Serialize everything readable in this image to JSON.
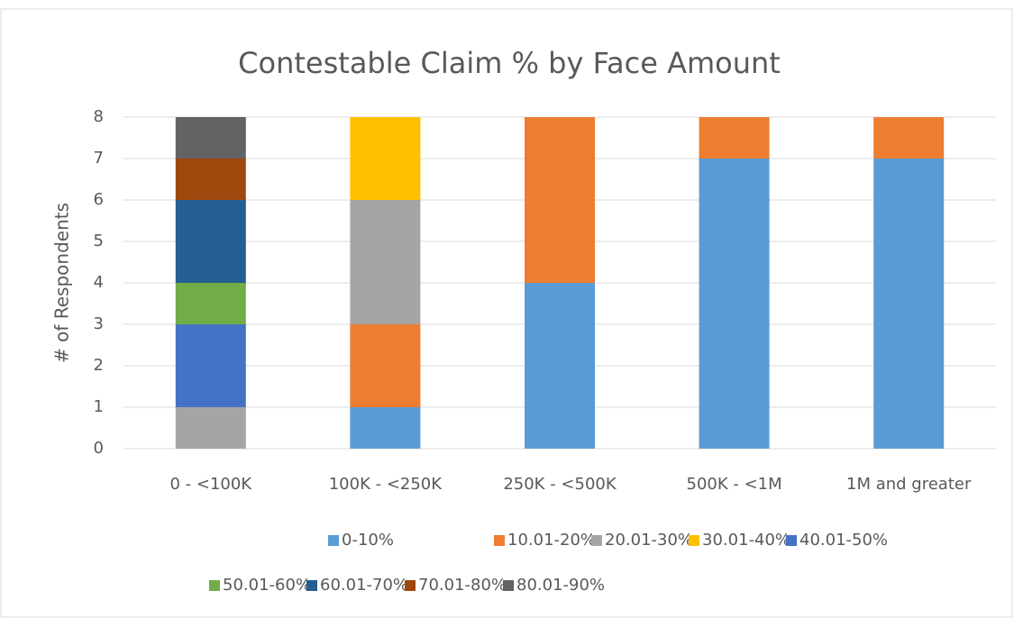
{
  "chart_data": {
    "type": "stacked_bar",
    "title": "Contestable Claim % by Face Amount",
    "y_label": "# of Respondents",
    "categories": [
      "0 - <100K",
      "100K - <250K",
      "250K - <500K",
      "500K - <1M",
      "1M and greater"
    ],
    "series": [
      {
        "name": "0-10%",
        "color": "#5b9bd5",
        "values": [
          0,
          1,
          4,
          7,
          7
        ]
      },
      {
        "name": "10.01-20%",
        "color": "#ed7d31",
        "values": [
          0,
          2,
          4,
          1,
          1
        ]
      },
      {
        "name": "20.01-30%",
        "color": "#a5a5a5",
        "values": [
          1,
          3,
          0,
          0,
          0
        ]
      },
      {
        "name": "30.01-40%",
        "color": "#ffc000",
        "values": [
          0,
          2,
          0,
          0,
          0
        ]
      },
      {
        "name": "40.01-50%",
        "color": "#4472c4",
        "values": [
          2,
          0,
          0,
          0,
          0
        ]
      },
      {
        "name": "50.01-60%",
        "color": "#70ad47",
        "values": [
          1,
          0,
          0,
          0,
          0
        ]
      },
      {
        "name": "60.01-70%",
        "color": "#255e91",
        "values": [
          2,
          0,
          0,
          0,
          0
        ]
      },
      {
        "name": "70.01-80%",
        "color": "#9e480e",
        "values": [
          1,
          0,
          0,
          0,
          0
        ]
      },
      {
        "name": "80.01-90%",
        "color": "#636363",
        "values": [
          1,
          0,
          0,
          0,
          0
        ]
      }
    ],
    "ylim": [
      0,
      8
    ],
    "yticks": [
      0,
      1,
      2,
      3,
      4,
      5,
      6,
      7,
      8
    ],
    "grid": true,
    "legend": "bottom"
  }
}
